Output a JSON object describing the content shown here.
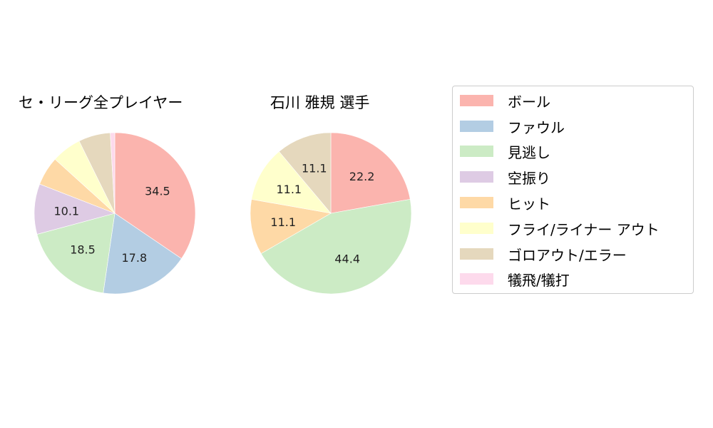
{
  "chart_data": [
    {
      "type": "pie",
      "title": "セ・リーグ全プレイヤー",
      "categories": [
        "ボール",
        "ファウル",
        "見逃し",
        "空振り",
        "ヒット",
        "フライ/ライナー アウト",
        "ゴロアウト/エラー",
        "犠飛/犠打"
      ],
      "values": [
        34.5,
        17.8,
        18.5,
        10.1,
        5.8,
        6.0,
        6.4,
        0.9
      ],
      "labels": [
        "34.5",
        "17.8",
        "18.5",
        "10.1",
        "",
        "",
        "",
        ""
      ],
      "start_angle": 90,
      "direction": "clockwise"
    },
    {
      "type": "pie",
      "title": "石川 雅規  選手",
      "categories": [
        "ボール",
        "見逃し",
        "ヒット",
        "フライ/ライナー アウト",
        "ゴロアウト/エラー"
      ],
      "values": [
        22.2,
        44.4,
        11.1,
        11.1,
        11.1
      ],
      "labels": [
        "22.2",
        "44.4",
        "11.1",
        "11.1",
        "11.1"
      ],
      "start_angle": 90,
      "direction": "clockwise"
    }
  ],
  "colors": {
    "ボール": "#fbb4ae",
    "ファウル": "#b3cde3",
    "見逃し": "#ccebc5",
    "空振り": "#decbe4",
    "ヒット": "#fed9a6",
    "フライ/ライナー アウト": "#ffffcc",
    "ゴロアウト/エラー": "#e5d8bd",
    "犠飛/犠打": "#fddaec"
  },
  "legend": {
    "items": [
      {
        "label": "ボール",
        "color": "#fbb4ae"
      },
      {
        "label": "ファウル",
        "color": "#b3cde3"
      },
      {
        "label": "見逃し",
        "color": "#ccebc5"
      },
      {
        "label": "空振り",
        "color": "#decbe4"
      },
      {
        "label": "ヒット",
        "color": "#fed9a6"
      },
      {
        "label": "フライ/ライナー アウト",
        "color": "#ffffcc"
      },
      {
        "label": "ゴロアウト/エラー",
        "color": "#e5d8bd"
      },
      {
        "label": "犠飛/犠打",
        "color": "#fddaec"
      }
    ]
  },
  "pies": [
    {
      "title": "セ・リーグ全プレイヤー"
    },
    {
      "title": "石川 雅規  選手"
    }
  ]
}
